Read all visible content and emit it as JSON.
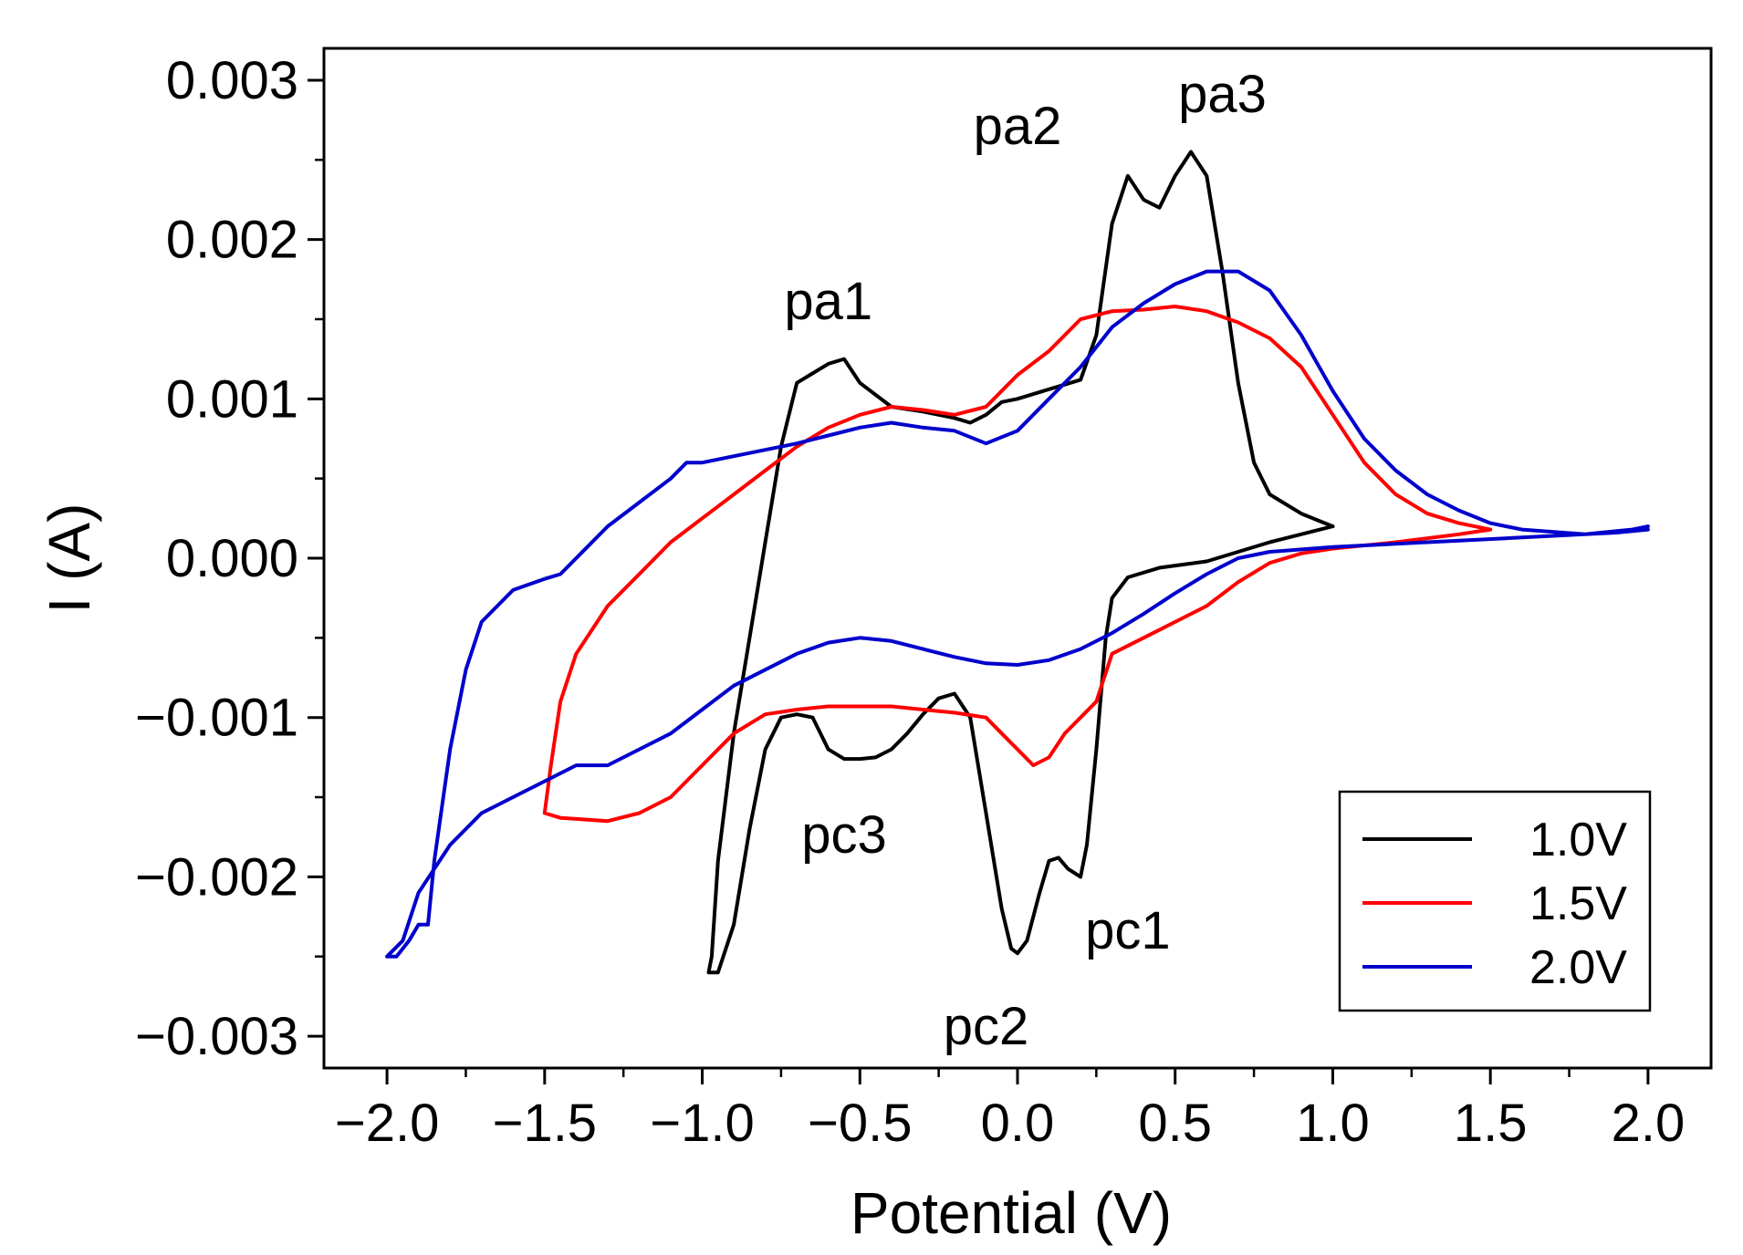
{
  "chart_data": {
    "type": "line",
    "title": "",
    "xlabel": "Potential (V)",
    "ylabel": "I (A)",
    "xlim": [
      -2.2,
      2.2
    ],
    "ylim": [
      -0.0032,
      0.0032
    ],
    "x_ticks": [
      -2.0,
      -1.5,
      -1.0,
      -0.5,
      0.0,
      0.5,
      1.0,
      1.5,
      2.0
    ],
    "x_tick_labels": [
      "−2.0",
      "−1.5",
      "−1.0",
      "−0.5",
      "0.0",
      "0.5",
      "1.0",
      "1.5",
      "2.0"
    ],
    "y_ticks": [
      -0.003,
      -0.002,
      -0.001,
      0.0,
      0.001,
      0.002,
      0.003
    ],
    "y_tick_labels": [
      "−0.003",
      "−0.002",
      "−0.001",
      "0.000",
      "0.001",
      "0.002",
      "0.003"
    ],
    "grid": false,
    "legend_position": "bottom-right",
    "series": [
      {
        "name": "1.0V",
        "color": "#000000",
        "points": [
          [
            1.0,
            0.0002
          ],
          [
            0.9,
            0.00028
          ],
          [
            0.8,
            0.0004
          ],
          [
            0.75,
            0.0006
          ],
          [
            0.7,
            0.0011
          ],
          [
            0.65,
            0.0018
          ],
          [
            0.6,
            0.0024
          ],
          [
            0.55,
            0.00255
          ],
          [
            0.5,
            0.0024
          ],
          [
            0.45,
            0.0022
          ],
          [
            0.4,
            0.00225
          ],
          [
            0.35,
            0.0024
          ],
          [
            0.3,
            0.0021
          ],
          [
            0.25,
            0.0014
          ],
          [
            0.2,
            0.00112
          ],
          [
            0.1,
            0.00106
          ],
          [
            0.0,
            0.001
          ],
          [
            -0.05,
            0.00098
          ],
          [
            -0.1,
            0.0009
          ],
          [
            -0.15,
            0.00085
          ],
          [
            -0.2,
            0.00088
          ],
          [
            -0.3,
            0.00092
          ],
          [
            -0.4,
            0.00095
          ],
          [
            -0.5,
            0.0011
          ],
          [
            -0.55,
            0.00125
          ],
          [
            -0.6,
            0.00122
          ],
          [
            -0.7,
            0.0011
          ],
          [
            -0.75,
            0.0007
          ],
          [
            -0.8,
            0.0001
          ],
          [
            -0.85,
            -0.0005
          ],
          [
            -0.9,
            -0.0011
          ],
          [
            -0.95,
            -0.0019
          ],
          [
            -0.97,
            -0.0025
          ],
          [
            -0.98,
            -0.0026
          ],
          [
            -0.95,
            -0.0026
          ],
          [
            -0.9,
            -0.0023
          ],
          [
            -0.85,
            -0.0017
          ],
          [
            -0.8,
            -0.0012
          ],
          [
            -0.75,
            -0.001
          ],
          [
            -0.7,
            -0.00098
          ],
          [
            -0.65,
            -0.001
          ],
          [
            -0.6,
            -0.0012
          ],
          [
            -0.55,
            -0.00126
          ],
          [
            -0.5,
            -0.00126
          ],
          [
            -0.45,
            -0.00125
          ],
          [
            -0.4,
            -0.0012
          ],
          [
            -0.35,
            -0.0011
          ],
          [
            -0.3,
            -0.00098
          ],
          [
            -0.25,
            -0.00088
          ],
          [
            -0.2,
            -0.00085
          ],
          [
            -0.15,
            -0.001
          ],
          [
            -0.1,
            -0.0016
          ],
          [
            -0.05,
            -0.0022
          ],
          [
            -0.02,
            -0.00245
          ],
          [
            0.0,
            -0.00248
          ],
          [
            0.03,
            -0.0024
          ],
          [
            0.07,
            -0.0021
          ],
          [
            0.1,
            -0.0019
          ],
          [
            0.13,
            -0.00188
          ],
          [
            0.16,
            -0.00195
          ],
          [
            0.2,
            -0.002
          ],
          [
            0.22,
            -0.0018
          ],
          [
            0.25,
            -0.0012
          ],
          [
            0.28,
            -0.0005
          ],
          [
            0.3,
            -0.00025
          ],
          [
            0.35,
            -0.00012
          ],
          [
            0.45,
            -6e-05
          ],
          [
            0.6,
            -2e-05
          ],
          [
            0.8,
            0.0001
          ],
          [
            1.0,
            0.0002
          ]
        ]
      },
      {
        "name": "1.5V",
        "color": "#ff0000",
        "points": [
          [
            1.5,
            0.00018
          ],
          [
            1.4,
            0.00022
          ],
          [
            1.3,
            0.00028
          ],
          [
            1.2,
            0.0004
          ],
          [
            1.1,
            0.0006
          ],
          [
            1.0,
            0.0009
          ],
          [
            0.9,
            0.0012
          ],
          [
            0.8,
            0.00138
          ],
          [
            0.7,
            0.00148
          ],
          [
            0.6,
            0.00155
          ],
          [
            0.5,
            0.00158
          ],
          [
            0.4,
            0.00156
          ],
          [
            0.3,
            0.00155
          ],
          [
            0.2,
            0.0015
          ],
          [
            0.1,
            0.0013
          ],
          [
            0.0,
            0.00115
          ],
          [
            -0.1,
            0.00095
          ],
          [
            -0.2,
            0.0009
          ],
          [
            -0.3,
            0.00093
          ],
          [
            -0.4,
            0.00095
          ],
          [
            -0.5,
            0.0009
          ],
          [
            -0.6,
            0.00082
          ],
          [
            -0.7,
            0.0007
          ],
          [
            -0.8,
            0.00055
          ],
          [
            -0.9,
            0.0004
          ],
          [
            -1.0,
            0.00025
          ],
          [
            -1.1,
            0.0001
          ],
          [
            -1.2,
            -0.0001
          ],
          [
            -1.3,
            -0.0003
          ],
          [
            -1.4,
            -0.0006
          ],
          [
            -1.45,
            -0.0009
          ],
          [
            -1.48,
            -0.0013
          ],
          [
            -1.5,
            -0.0016
          ],
          [
            -1.45,
            -0.00163
          ],
          [
            -1.3,
            -0.00165
          ],
          [
            -1.2,
            -0.0016
          ],
          [
            -1.1,
            -0.0015
          ],
          [
            -1.0,
            -0.0013
          ],
          [
            -0.9,
            -0.0011
          ],
          [
            -0.8,
            -0.00098
          ],
          [
            -0.7,
            -0.00095
          ],
          [
            -0.6,
            -0.00093
          ],
          [
            -0.5,
            -0.00093
          ],
          [
            -0.4,
            -0.00093
          ],
          [
            -0.3,
            -0.00095
          ],
          [
            -0.2,
            -0.00097
          ],
          [
            -0.1,
            -0.001
          ],
          [
            -0.05,
            -0.0011
          ],
          [
            0.0,
            -0.0012
          ],
          [
            0.05,
            -0.0013
          ],
          [
            0.1,
            -0.00125
          ],
          [
            0.15,
            -0.0011
          ],
          [
            0.2,
            -0.001
          ],
          [
            0.25,
            -0.0009
          ],
          [
            0.3,
            -0.0006
          ],
          [
            0.4,
            -0.0005
          ],
          [
            0.5,
            -0.0004
          ],
          [
            0.6,
            -0.0003
          ],
          [
            0.7,
            -0.00015
          ],
          [
            0.8,
            -3e-05
          ],
          [
            0.9,
            3e-05
          ],
          [
            1.0,
            6e-05
          ],
          [
            1.2,
            0.0001
          ],
          [
            1.4,
            0.00015
          ],
          [
            1.5,
            0.00018
          ]
        ]
      },
      {
        "name": "2.0V",
        "color": "#0000cc",
        "points": [
          [
            2.0,
            0.00018
          ],
          [
            1.9,
            0.00016
          ],
          [
            1.8,
            0.00015
          ],
          [
            1.6,
            0.00018
          ],
          [
            1.5,
            0.00022
          ],
          [
            1.4,
            0.0003
          ],
          [
            1.3,
            0.0004
          ],
          [
            1.2,
            0.00055
          ],
          [
            1.1,
            0.00075
          ],
          [
            1.0,
            0.00105
          ],
          [
            0.9,
            0.0014
          ],
          [
            0.8,
            0.00168
          ],
          [
            0.7,
            0.0018
          ],
          [
            0.6,
            0.0018
          ],
          [
            0.5,
            0.00172
          ],
          [
            0.4,
            0.0016
          ],
          [
            0.3,
            0.00145
          ],
          [
            0.2,
            0.0012
          ],
          [
            0.1,
            0.001
          ],
          [
            0.0,
            0.0008
          ],
          [
            -0.1,
            0.00072
          ],
          [
            -0.2,
            0.0008
          ],
          [
            -0.3,
            0.00082
          ],
          [
            -0.4,
            0.00085
          ],
          [
            -0.5,
            0.00082
          ],
          [
            -0.6,
            0.00077
          ],
          [
            -0.7,
            0.00072
          ],
          [
            -0.8,
            0.00068
          ],
          [
            -0.9,
            0.00064
          ],
          [
            -1.0,
            0.0006
          ],
          [
            -1.05,
            0.0006
          ],
          [
            -1.1,
            0.0005
          ],
          [
            -1.2,
            0.00035
          ],
          [
            -1.3,
            0.0002
          ],
          [
            -1.4,
            0.0
          ],
          [
            -1.45,
            -0.0001
          ],
          [
            -1.5,
            -0.00013
          ],
          [
            -1.6,
            -0.0002
          ],
          [
            -1.7,
            -0.0004
          ],
          [
            -1.75,
            -0.0007
          ],
          [
            -1.8,
            -0.0012
          ],
          [
            -1.85,
            -0.0019
          ],
          [
            -1.87,
            -0.0023
          ],
          [
            -1.9,
            -0.0023
          ],
          [
            -1.93,
            -0.0024
          ],
          [
            -1.97,
            -0.0025
          ],
          [
            -2.0,
            -0.0025
          ],
          [
            -1.95,
            -0.0024
          ],
          [
            -1.9,
            -0.0021
          ],
          [
            -1.8,
            -0.0018
          ],
          [
            -1.7,
            -0.0016
          ],
          [
            -1.6,
            -0.0015
          ],
          [
            -1.5,
            -0.0014
          ],
          [
            -1.4,
            -0.0013
          ],
          [
            -1.3,
            -0.0013
          ],
          [
            -1.2,
            -0.0012
          ],
          [
            -1.1,
            -0.0011
          ],
          [
            -1.0,
            -0.00095
          ],
          [
            -0.9,
            -0.0008
          ],
          [
            -0.8,
            -0.0007
          ],
          [
            -0.7,
            -0.0006
          ],
          [
            -0.6,
            -0.00053
          ],
          [
            -0.5,
            -0.0005
          ],
          [
            -0.4,
            -0.00052
          ],
          [
            -0.3,
            -0.00057
          ],
          [
            -0.2,
            -0.00062
          ],
          [
            -0.1,
            -0.00066
          ],
          [
            0.0,
            -0.00067
          ],
          [
            0.1,
            -0.00064
          ],
          [
            0.2,
            -0.00057
          ],
          [
            0.3,
            -0.00047
          ],
          [
            0.4,
            -0.00035
          ],
          [
            0.5,
            -0.00022
          ],
          [
            0.6,
            -0.0001
          ],
          [
            0.7,
            0.0
          ],
          [
            0.8,
            4e-05
          ],
          [
            1.0,
            7e-05
          ],
          [
            1.3,
            0.0001
          ],
          [
            1.6,
            0.00013
          ],
          [
            1.8,
            0.00015
          ],
          [
            1.95,
            0.00018
          ],
          [
            2.0,
            0.0002
          ]
        ]
      }
    ],
    "annotations": [
      {
        "text": "pa1",
        "x": -0.6,
        "y": 0.0015
      },
      {
        "text": "pa2",
        "x": 0.0,
        "y": 0.0026
      },
      {
        "text": "pa3",
        "x": 0.65,
        "y": 0.0028
      },
      {
        "text": "pc3",
        "x": -0.55,
        "y": -0.00185
      },
      {
        "text": "pc2",
        "x": -0.1,
        "y": -0.00305
      },
      {
        "text": "pc1",
        "x": 0.35,
        "y": -0.00245
      }
    ]
  }
}
